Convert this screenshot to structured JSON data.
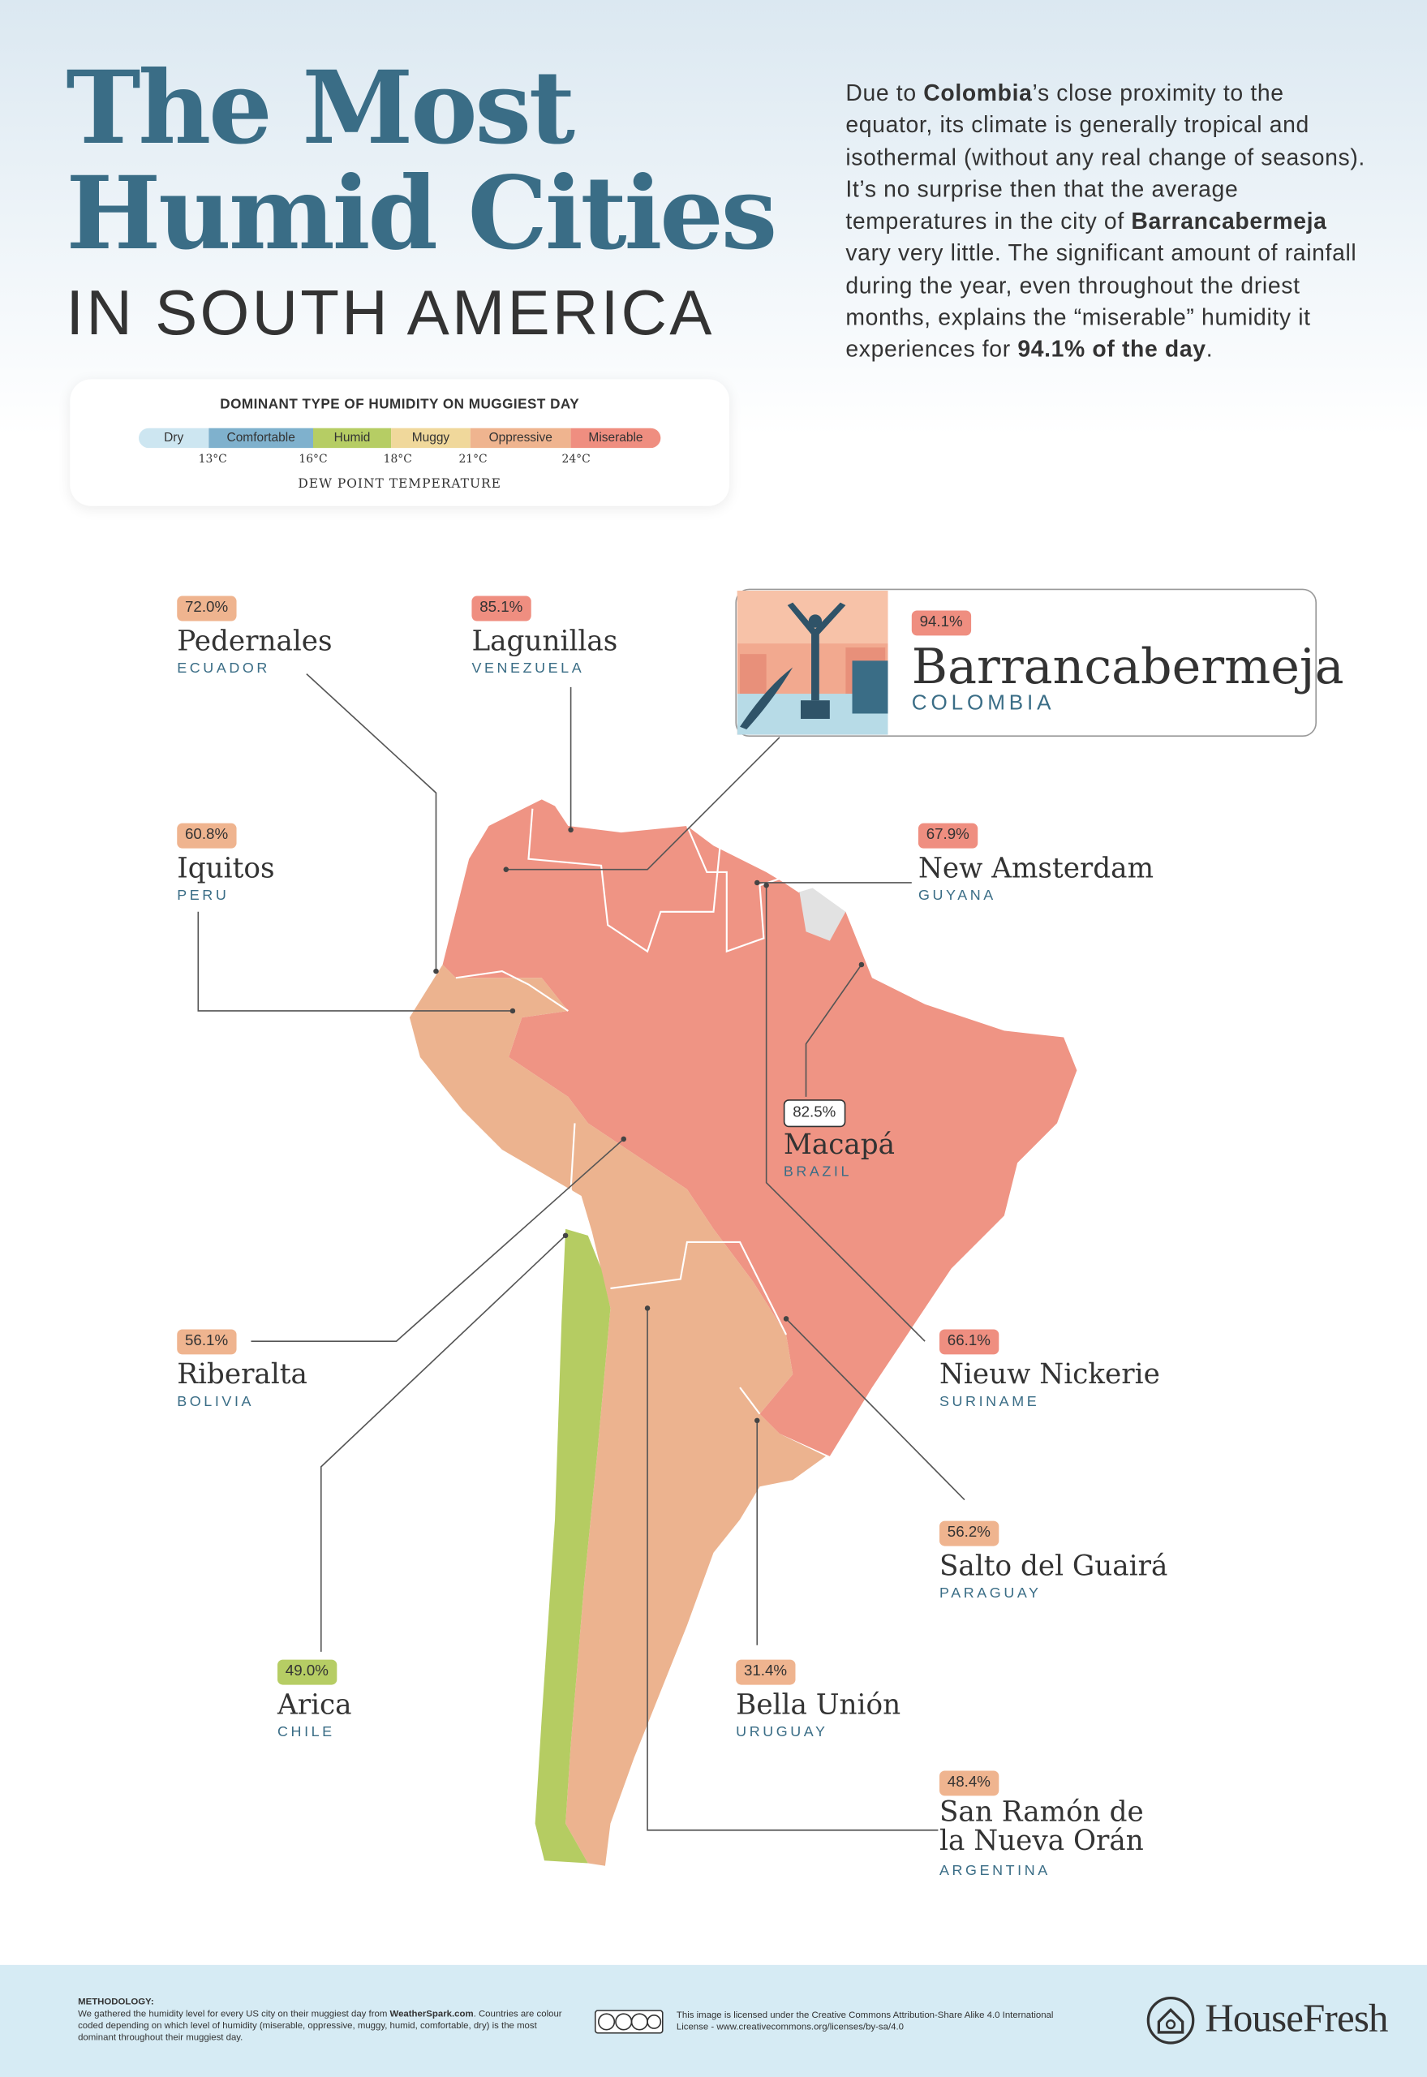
{
  "header": {
    "title_line1": "The Most",
    "title_line2": "Humid Cities",
    "subtitle": "IN SOUTH AMERICA"
  },
  "intro": [
    "Due to ",
    "Colombia",
    "’s close proximity to the equator, its climate is generally tropical and isothermal (without any real change of seasons). It’s no surprise then that the average temperatures in the city of ",
    "Barrancabermeja",
    " vary very little. The significant amount of rainfall during the year, even throughout the driest months, explains the “miserable” humidity it experiences for ",
    "94.1% of the day",
    "."
  ],
  "legend": {
    "title": "DOMINANT TYPE OF HUMIDITY ON MUGGIEST DAY",
    "categories": [
      {
        "name": "Dry",
        "color": "#cde6f1"
      },
      {
        "name": "Comfortable",
        "color": "#7fb1cd"
      },
      {
        "name": "Humid",
        "color": "#b6cd64"
      },
      {
        "name": "Muggy",
        "color": "#f0d89b"
      },
      {
        "name": "Oppressive",
        "color": "#efb48f"
      },
      {
        "name": "Miserable",
        "color": "#ef8e80"
      }
    ],
    "ticks": [
      "13°C",
      "16°C",
      "18°C",
      "21°C",
      "24°C"
    ],
    "axis_label": "DEW POINT TEMPERATURE"
  },
  "featured": {
    "percent": "94.1%",
    "name": "Barrancabermeja",
    "country": "COLOMBIA",
    "color": "#ef8e80"
  },
  "cities": [
    {
      "percent": "72.0%",
      "name": "Pedernales",
      "country": "ECUADOR",
      "color": "#efb48f"
    },
    {
      "percent": "85.1%",
      "name": "Lagunillas",
      "country": "VENEZUELA",
      "color": "#ef8e80"
    },
    {
      "percent": "60.8%",
      "name": "Iquitos",
      "country": "PERU",
      "color": "#efb48f"
    },
    {
      "percent": "67.9%",
      "name": "New Amsterdam",
      "country": "GUYANA",
      "color": "#ef8e80"
    },
    {
      "percent": "82.5%",
      "name": "Macapá",
      "country": "BRAZIL",
      "color": "#ffffff"
    },
    {
      "percent": "56.1%",
      "name": "Riberalta",
      "country": "BOLIVIA",
      "color": "#efb48f"
    },
    {
      "percent": "66.1%",
      "name": "Nieuw Nickerie",
      "country": "SURINAME",
      "color": "#ef8e80"
    },
    {
      "percent": "56.2%",
      "name": "Salto del Guairá",
      "country": "PARAGUAY",
      "color": "#efb48f"
    },
    {
      "percent": "49.0%",
      "name": "Arica",
      "country": "CHILE",
      "color": "#b6cd64"
    },
    {
      "percent": "31.4%",
      "name": "Bella Unión",
      "country": "URUGUAY",
      "color": "#efb48f"
    },
    {
      "percent": "48.4%",
      "name": "San Ramón de la Nueva Orán",
      "country": "ARGENTINA",
      "color": "#efb48f"
    }
  ],
  "footer": {
    "methodology_title": "METHODOLOGY:",
    "methodology": [
      "We gathered the humidity level for every US city on their muggiest day from ",
      "WeatherSpark.com",
      ". Countries are colour coded depending on which level of humidity (miserable, oppressive, muggy, humid, comfortable, dry) is the most dominant throughout their muggiest day."
    ],
    "license": "This image is licensed under the Creative Commons Attribution-Share Alike 4.0 International License - www.creativecommons.org/licenses/by-sa/4.0",
    "brand": "HouseFresh"
  }
}
